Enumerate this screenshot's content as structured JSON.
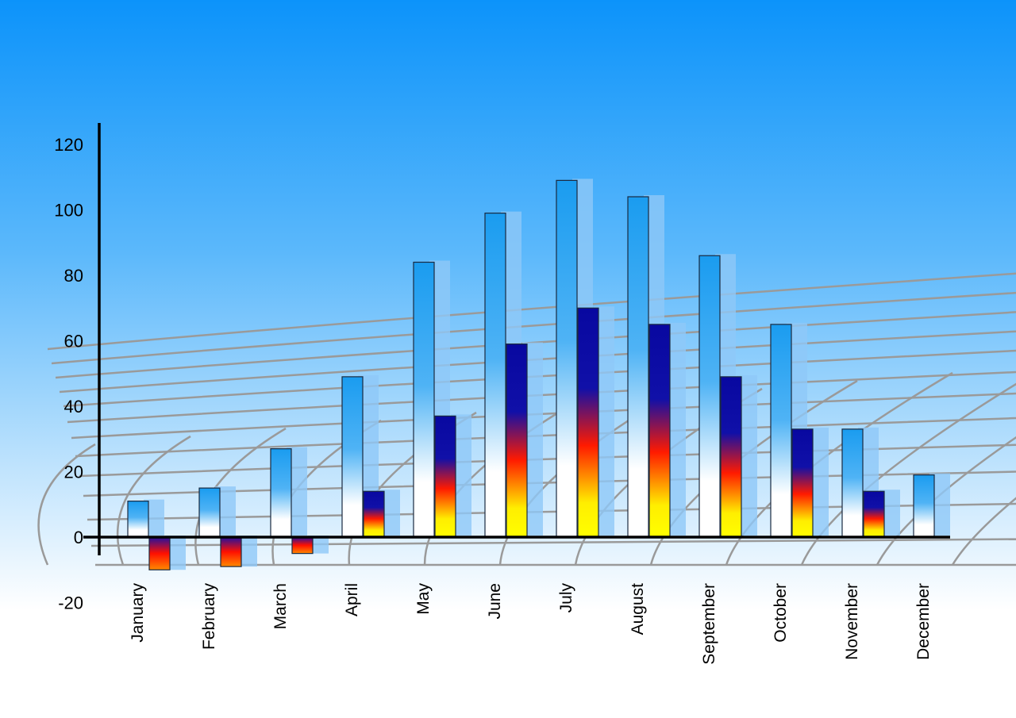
{
  "chart_data": {
    "type": "bar",
    "title": "",
    "xlabel": "",
    "ylabel": "",
    "ylim": [
      -20,
      120
    ],
    "yticks": [
      -20,
      0,
      20,
      40,
      60,
      80,
      100,
      120
    ],
    "categories": [
      "January",
      "February",
      "March",
      "April",
      "May",
      "June",
      "July",
      "August",
      "September",
      "October",
      "November",
      "December"
    ],
    "series": [
      {
        "values": [
          11,
          15,
          27,
          49,
          84,
          99,
          109,
          104,
          86,
          65,
          33,
          19
        ],
        "color": "#1a9cf0"
      },
      {
        "values": [
          -10,
          -9,
          -5,
          14,
          37,
          59,
          70,
          65,
          49,
          33,
          14,
          null
        ],
        "color": "#0a0aa0"
      }
    ],
    "grid": false,
    "legend": "none",
    "style": "3d"
  }
}
